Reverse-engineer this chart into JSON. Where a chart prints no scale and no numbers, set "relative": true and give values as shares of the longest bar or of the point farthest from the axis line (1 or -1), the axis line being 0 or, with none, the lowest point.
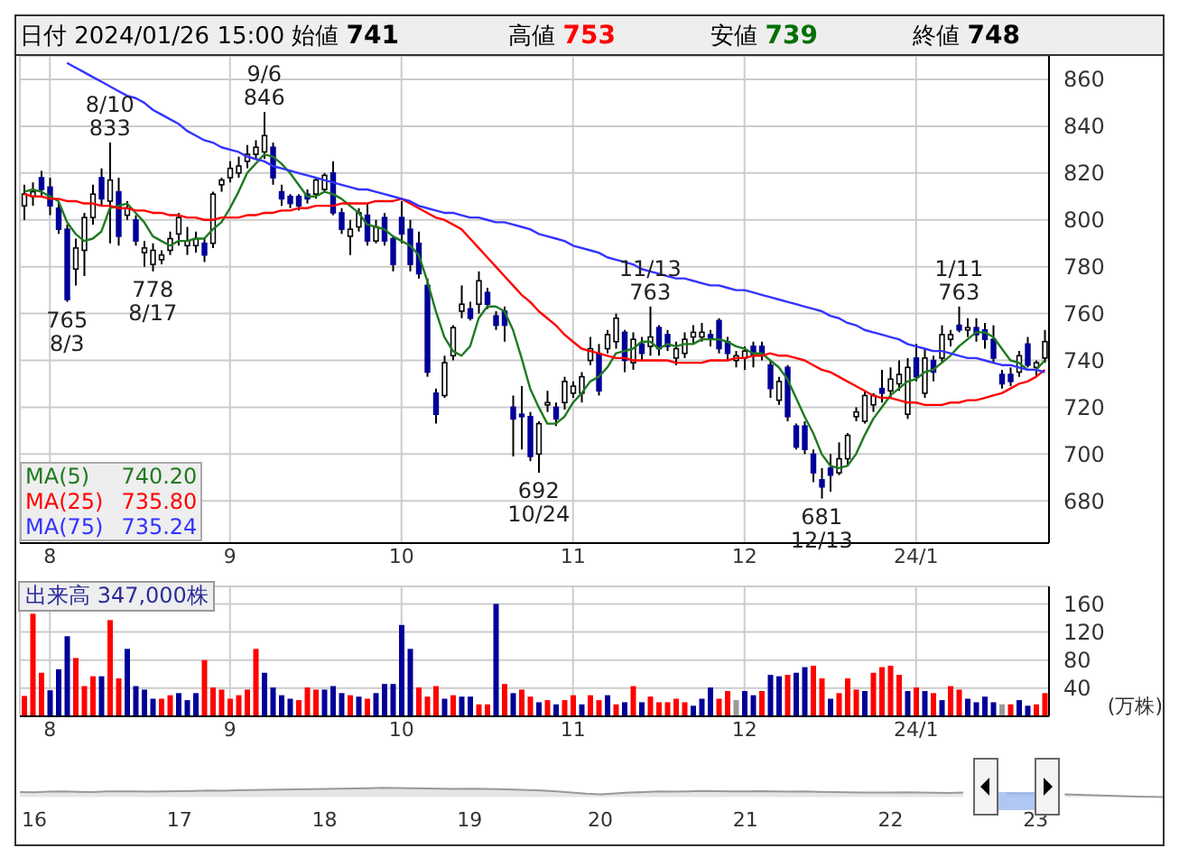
{
  "chart_data": [
    {
      "type": "candlestick",
      "title": "日付 2024/01/26 15:00",
      "annotations": [
        "始値 741",
        "高値 753",
        "安値 739",
        "終値 748",
        {
          "text": "765\n8/3",
          "y": 765
        },
        {
          "text": "8/10\n833",
          "y": 833
        },
        {
          "text": "778\n8/17",
          "y": 778
        },
        {
          "text": "9/6\n846",
          "y": 846
        },
        {
          "text": "692\n10/24",
          "y": 692
        },
        {
          "text": "11/13\n763",
          "y": 763
        },
        {
          "text": "681\n12/13",
          "y": 681
        },
        {
          "text": "1/11\n763",
          "y": 763
        }
      ],
      "categories": [
        null,
        null,
        null,
        "8",
        null,
        null,
        null,
        null,
        null,
        null,
        null,
        null,
        null,
        null,
        null,
        null,
        null,
        null,
        null,
        null,
        null,
        null,
        null,
        null,
        "9",
        null,
        null,
        null,
        null,
        null,
        null,
        null,
        null,
        null,
        null,
        null,
        null,
        null,
        null,
        null,
        null,
        null,
        null,
        null,
        "10",
        null,
        null,
        null,
        null,
        null,
        null,
        null,
        null,
        null,
        null,
        null,
        null,
        null,
        null,
        null,
        null,
        null,
        null,
        null,
        "11",
        null,
        null,
        null,
        null,
        null,
        null,
        null,
        null,
        null,
        null,
        null,
        null,
        null,
        null,
        null,
        null,
        null,
        null,
        null,
        "12",
        null,
        null,
        null,
        null,
        null,
        null,
        null,
        null,
        null,
        null,
        null,
        null,
        null,
        null,
        null,
        null,
        null,
        null,
        null,
        "24/1",
        null,
        null,
        null,
        null,
        null,
        null,
        null,
        null,
        null,
        null,
        null,
        null,
        null,
        null,
        null
      ],
      "ohlc": [
        [
          806,
          815,
          800,
          811
        ],
        [
          810,
          816,
          806,
          812
        ],
        [
          818,
          821,
          810,
          813
        ],
        [
          814,
          818,
          802,
          806
        ],
        [
          805,
          808,
          794,
          796
        ],
        [
          796,
          798,
          765,
          766
        ],
        [
          779,
          792,
          772,
          788
        ],
        [
          787,
          803,
          776,
          801
        ],
        [
          801,
          815,
          798,
          811
        ],
        [
          818,
          822,
          806,
          809
        ],
        [
          808,
          833,
          790,
          817
        ],
        [
          812,
          818,
          789,
          793
        ],
        [
          802,
          808,
          800,
          805
        ],
        [
          800,
          802,
          789,
          791
        ],
        [
          786,
          791,
          780,
          788
        ],
        [
          781,
          790,
          778,
          787
        ],
        [
          783,
          787,
          781,
          785
        ],
        [
          787,
          795,
          785,
          792
        ],
        [
          794,
          803,
          789,
          801
        ],
        [
          789,
          797,
          785,
          791
        ],
        [
          789,
          795,
          786,
          792
        ],
        [
          790,
          792,
          782,
          785
        ],
        [
          790,
          812,
          788,
          811
        ],
        [
          815,
          818,
          812,
          817
        ],
        [
          818,
          825,
          816,
          822
        ],
        [
          820,
          827,
          818,
          823
        ],
        [
          825,
          832,
          822,
          828
        ],
        [
          828,
          834,
          826,
          831
        ],
        [
          829,
          846,
          826,
          836
        ],
        [
          831,
          833,
          815,
          818
        ],
        [
          812,
          815,
          806,
          809
        ],
        [
          810,
          811,
          805,
          807
        ],
        [
          810,
          811,
          804,
          806
        ],
        [
          811,
          813,
          807,
          809
        ],
        [
          811,
          818,
          809,
          817
        ],
        [
          813,
          820,
          812,
          819
        ],
        [
          820,
          825,
          802,
          803
        ],
        [
          803,
          805,
          794,
          796
        ],
        [
          793,
          800,
          785,
          796
        ],
        [
          797,
          805,
          795,
          803
        ],
        [
          802,
          807,
          789,
          791
        ],
        [
          791,
          800,
          790,
          797
        ],
        [
          801,
          803,
          789,
          791
        ],
        [
          792,
          793,
          778,
          781
        ],
        [
          801,
          808,
          790,
          794
        ],
        [
          796,
          800,
          778,
          781
        ],
        [
          790,
          795,
          775,
          777
        ],
        [
          772,
          775,
          733,
          735
        ],
        [
          726,
          728,
          713,
          717
        ],
        [
          725,
          742,
          724,
          739
        ],
        [
          742,
          755,
          740,
          754
        ],
        [
          761,
          772,
          758,
          764
        ],
        [
          762,
          765,
          757,
          758
        ],
        [
          764,
          778,
          760,
          774
        ],
        [
          769,
          771,
          762,
          764
        ],
        [
          759,
          761,
          753,
          755
        ],
        [
          761,
          763,
          748,
          755
        ],
        [
          720,
          725,
          699,
          715
        ],
        [
          717,
          729,
          702,
          716
        ],
        [
          716,
          718,
          697,
          699
        ],
        [
          700,
          714,
          692,
          713
        ],
        [
          721,
          727,
          718,
          722
        ],
        [
          720,
          722,
          712,
          715
        ],
        [
          722,
          733,
          719,
          731
        ],
        [
          726,
          731,
          724,
          729
        ],
        [
          726,
          735,
          722,
          733
        ],
        [
          740,
          750,
          738,
          745
        ],
        [
          743,
          747,
          725,
          727
        ],
        [
          745,
          753,
          743,
          751
        ],
        [
          748,
          760,
          745,
          758
        ],
        [
          752,
          753,
          735,
          740
        ],
        [
          739,
          752,
          736,
          749
        ],
        [
          747,
          750,
          740,
          743
        ],
        [
          746,
          763,
          742,
          750
        ],
        [
          754,
          755,
          742,
          745
        ],
        [
          751,
          753,
          744,
          746
        ],
        [
          741,
          748,
          738,
          745
        ],
        [
          743,
          752,
          741,
          749
        ],
        [
          750,
          755,
          747,
          752
        ],
        [
          750,
          756,
          748,
          752
        ],
        [
          751,
          753,
          746,
          749
        ],
        [
          757,
          758,
          743,
          745
        ],
        [
          748,
          750,
          740,
          743
        ],
        [
          740,
          744,
          737,
          742
        ],
        [
          741,
          746,
          736,
          744
        ],
        [
          746,
          748,
          737,
          742
        ],
        [
          746,
          748,
          740,
          742
        ],
        [
          738,
          740,
          724,
          728
        ],
        [
          723,
          733,
          721,
          731
        ],
        [
          737,
          738,
          714,
          716
        ],
        [
          712,
          713,
          702,
          703
        ],
        [
          712,
          714,
          700,
          702
        ],
        [
          700,
          702,
          688,
          692
        ],
        [
          689,
          694,
          681,
          686
        ],
        [
          694,
          700,
          684,
          691
        ],
        [
          692,
          705,
          691,
          698
        ],
        [
          698,
          709,
          695,
          708
        ],
        [
          716,
          720,
          714,
          718
        ],
        [
          714,
          727,
          713,
          725
        ],
        [
          721,
          726,
          718,
          725
        ],
        [
          728,
          736,
          722,
          726
        ],
        [
          727,
          737,
          724,
          732
        ],
        [
          730,
          740,
          727,
          734
        ],
        [
          717,
          741,
          715,
          737
        ],
        [
          741,
          747,
          731,
          733
        ],
        [
          726,
          745,
          724,
          741
        ],
        [
          740,
          742,
          731,
          735
        ],
        [
          741,
          755,
          739,
          751
        ],
        [
          749,
          753,
          746,
          751
        ],
        [
          755,
          763,
          752,
          753
        ],
        [
          753,
          758,
          750,
          754
        ],
        [
          754,
          758,
          748,
          751
        ],
        [
          753,
          756,
          745,
          749
        ],
        [
          749,
          755,
          739,
          741
        ],
        [
          734,
          736,
          728,
          730
        ],
        [
          734,
          737,
          729,
          731
        ],
        [
          735,
          744,
          733,
          742
        ],
        [
          747,
          750,
          737,
          738
        ],
        [
          737,
          740,
          733,
          739
        ],
        [
          741,
          753,
          739,
          748
        ]
      ],
      "series": [
        {
          "name": "MA(5) 740.20",
          "type": "line",
          "color": "#1f7a1f",
          "values": [
            812,
            813,
            812,
            810,
            808,
            799,
            794,
            791,
            792,
            795,
            805,
            806,
            807,
            803,
            799,
            793,
            791,
            789,
            791,
            791,
            792,
            792,
            796,
            799,
            805,
            812,
            820,
            824,
            828,
            827,
            824,
            820,
            815,
            810,
            810,
            812,
            811,
            809,
            806,
            803,
            798,
            797,
            796,
            793,
            791,
            789,
            785,
            774,
            761,
            750,
            744,
            742,
            746,
            758,
            763,
            763,
            761,
            753,
            741,
            728,
            720,
            713,
            713,
            716,
            722,
            726,
            731,
            733,
            737,
            743,
            744,
            745,
            748,
            748,
            745,
            747,
            746,
            747,
            747,
            749,
            749,
            749,
            748,
            746,
            745,
            743,
            743,
            740,
            737,
            732,
            724,
            716,
            709,
            700,
            695,
            694,
            695,
            700,
            708,
            715,
            720,
            725,
            728,
            731,
            732,
            735,
            736,
            739,
            742,
            746,
            749,
            752,
            752,
            750,
            745,
            740,
            739,
            736,
            736,
            740
          ]
        },
        {
          "name": "MA(25) 735.80",
          "type": "line",
          "color": "#ff0000",
          "values": [
            811,
            810,
            810,
            809,
            809,
            808,
            808,
            807,
            807,
            806,
            806,
            805,
            805,
            804,
            804,
            803,
            803,
            802,
            802,
            801,
            801,
            800,
            800,
            801,
            801,
            801,
            802,
            802,
            803,
            803,
            804,
            804,
            805,
            805,
            806,
            806,
            806,
            807,
            807,
            807,
            807,
            808,
            808,
            808,
            809,
            807,
            805,
            803,
            801,
            800,
            798,
            796,
            792,
            788,
            784,
            780,
            776,
            772,
            768,
            765,
            761,
            758,
            755,
            751,
            748,
            745,
            744,
            743,
            742,
            741,
            741,
            740,
            740,
            740,
            740,
            740,
            739,
            739,
            739,
            739,
            740,
            740,
            740,
            741,
            741,
            742,
            742,
            743,
            742,
            742,
            741,
            740,
            738,
            736,
            735,
            733,
            731,
            729,
            727,
            725,
            724,
            724,
            723,
            722,
            722,
            721,
            721,
            721,
            722,
            722,
            723,
            723,
            724,
            725,
            726,
            728,
            730,
            731,
            733,
            736
          ]
        },
        {
          "name": "MA(75) 735.24",
          "type": "line",
          "color": "#3333ff",
          "values": [
            null,
            null,
            null,
            null,
            null,
            867,
            865,
            863,
            861,
            859,
            857,
            855,
            853,
            852,
            850,
            847,
            845,
            843,
            841,
            838,
            836,
            834,
            833,
            831,
            830,
            829,
            827,
            826,
            825,
            823,
            822,
            821,
            820,
            819,
            818,
            817,
            816,
            815,
            814,
            813,
            813,
            812,
            811,
            810,
            809,
            808,
            806,
            805,
            804,
            803,
            803,
            802,
            801,
            801,
            800,
            799,
            799,
            798,
            797,
            796,
            794,
            793,
            792,
            791,
            789,
            788,
            787,
            786,
            784,
            783,
            782,
            781,
            779,
            778,
            777,
            776,
            775,
            775,
            774,
            773,
            772,
            772,
            771,
            770,
            770,
            769,
            768,
            767,
            766,
            765,
            764,
            763,
            762,
            761,
            759,
            758,
            756,
            755,
            753,
            752,
            751,
            750,
            749,
            747,
            746,
            745,
            744,
            744,
            743,
            742,
            741,
            741,
            740,
            739,
            738,
            738,
            737,
            736,
            736,
            735
          ]
        }
      ],
      "ylim": [
        662,
        870
      ],
      "yticks": [
        680,
        700,
        720,
        740,
        760,
        780,
        800,
        820,
        840,
        860
      ],
      "grid": true,
      "legend": "bottom left"
    },
    {
      "type": "bar",
      "title": "出来高 347,000株",
      "ylabel": "(万株)",
      "categories": [
        null,
        null,
        null,
        "8",
        null,
        null,
        null,
        null,
        null,
        null,
        null,
        null,
        null,
        null,
        null,
        null,
        null,
        null,
        null,
        null,
        null,
        null,
        null,
        null,
        "9",
        null,
        null,
        null,
        null,
        null,
        null,
        null,
        null,
        null,
        null,
        null,
        null,
        null,
        null,
        null,
        null,
        null,
        null,
        null,
        "10",
        null,
        null,
        null,
        null,
        null,
        null,
        null,
        null,
        null,
        null,
        null,
        null,
        null,
        null,
        null,
        null,
        null,
        null,
        null,
        "11",
        null,
        null,
        null,
        null,
        null,
        null,
        null,
        null,
        null,
        null,
        null,
        null,
        null,
        null,
        null,
        null,
        null,
        null,
        null,
        "12",
        null,
        null,
        null,
        null,
        null,
        null,
        null,
        null,
        null,
        null,
        null,
        null,
        null,
        null,
        null,
        null,
        null,
        null,
        null,
        "24/1",
        null,
        null,
        null,
        null,
        null,
        null,
        null,
        null,
        null,
        null,
        null,
        null,
        null,
        null,
        null
      ],
      "values": [
        29,
        146,
        62,
        37,
        67,
        114,
        83,
        43,
        57,
        57,
        137,
        54,
        96,
        43,
        38,
        25,
        25,
        30,
        33,
        23,
        33,
        80,
        41,
        38,
        25,
        30,
        38,
        96,
        62,
        41,
        30,
        25,
        23,
        41,
        38,
        38,
        43,
        33,
        30,
        28,
        25,
        33,
        46,
        46,
        130,
        96,
        41,
        28,
        43,
        25,
        30,
        28,
        28,
        17,
        17,
        160,
        46,
        33,
        38,
        28,
        20,
        23,
        17,
        23,
        30,
        17,
        30,
        23,
        30,
        17,
        20,
        43,
        20,
        28,
        20,
        20,
        25,
        20,
        15,
        25,
        41,
        25,
        36,
        23,
        36,
        30,
        36,
        59,
        57,
        59,
        62,
        70,
        72,
        54,
        25,
        33,
        54,
        38,
        36,
        62,
        70,
        72,
        59,
        36,
        41,
        36,
        33,
        23,
        43,
        38,
        25,
        20,
        28,
        20,
        17,
        17,
        23,
        15,
        17,
        33
      ],
      "colors": [
        "#ff0000",
        "#ff0000",
        "#ff0000",
        "#000099",
        "#000099",
        "#000099",
        "#ff0000",
        "#ff0000",
        "#ff0000",
        "#000099",
        "#ff0000",
        "#ff0000",
        "#000099",
        "#000099",
        "#000099",
        "#000099",
        "#ff0000",
        "#ff0000",
        "#000099",
        "#000099",
        "#000099",
        "#ff0000",
        "#ff0000",
        "#ff0000",
        "#ff0000",
        "#ff0000",
        "#ff0000",
        "#ff0000",
        "#000099",
        "#000099",
        "#000099",
        "#000099",
        "#ff0000",
        "#ff0000",
        "#ff0000",
        "#000099",
        "#000099",
        "#000099",
        "#ff0000",
        "#000099",
        "#ff0000",
        "#000099",
        "#000099",
        "#000099",
        "#000099",
        "#000099",
        "#ff0000",
        "#ff0000",
        "#ff0000",
        "#000099",
        "#ff0000",
        "#000099",
        "#000099",
        "#ff0000",
        "#ff0000",
        "#000099",
        "#ff0000",
        "#000099",
        "#ff0000",
        "#ff0000",
        "#000099",
        "#ff0000",
        "#000099",
        "#ff0000",
        "#ff0000",
        "#000099",
        "#ff0000",
        "#ff0000",
        "#000099",
        "#ff0000",
        "#000099",
        "#ff0000",
        "#000099",
        "#ff0000",
        "#ff0000",
        "#ff0000",
        "#ff0000",
        "#ff0000",
        "#000099",
        "#000099",
        "#000099",
        "#ff0000",
        "#ff0000",
        "#999999",
        "#000099",
        "#000099",
        "#ff0000",
        "#000099",
        "#000099",
        "#ff0000",
        "#000099",
        "#000099",
        "#ff0000",
        "#ff0000",
        "#000099",
        "#ff0000",
        "#ff0000",
        "#ff0000",
        "#000099",
        "#ff0000",
        "#ff0000",
        "#ff0000",
        "#ff0000",
        "#000099",
        "#ff0000",
        "#000099",
        "#ff0000",
        "#000099",
        "#ff0000",
        "#ff0000",
        "#000099",
        "#000099",
        "#000099",
        "#000099",
        "#999999",
        "#ff0000",
        "#000099",
        "#000099",
        "#ff0000",
        "#ff0000"
      ],
      "ylim": [
        0,
        185
      ],
      "yticks": [
        40,
        80,
        120,
        160
      ],
      "grid": true
    },
    {
      "type": "area",
      "relative": true,
      "tick_labels": "x",
      "color": "#999999",
      "categories": [
        null,
        "16",
        null,
        null,
        null,
        null,
        null,
        null,
        null,
        null,
        null,
        "17",
        null,
        null,
        null,
        null,
        null,
        null,
        null,
        null,
        null,
        "18",
        null,
        null,
        null,
        null,
        null,
        null,
        null,
        null,
        null,
        "19",
        null,
        null,
        null,
        null,
        null,
        null,
        null,
        null,
        "20",
        null,
        null,
        null,
        null,
        null,
        null,
        null,
        null,
        null,
        "21",
        null,
        null,
        null,
        null,
        null,
        null,
        null,
        null,
        null,
        "22",
        null,
        null,
        null,
        null,
        null,
        null,
        null,
        null,
        null,
        "23",
        null,
        null,
        null,
        null,
        null,
        null,
        null,
        null,
        null
      ],
      "values": [
        0.55,
        0.52,
        0.58,
        0.6,
        0.57,
        0.55,
        0.6,
        0.62,
        0.6,
        0.58,
        0.6,
        0.63,
        0.66,
        0.7,
        0.68,
        0.72,
        0.75,
        0.78,
        0.8,
        0.82,
        0.85,
        0.88,
        0.9,
        0.93,
        0.95,
        1,
        0.97,
        0.94,
        0.92,
        0.9,
        0.88,
        0.9,
        0.87,
        0.84,
        0.8,
        0.75,
        0.7,
        0.62,
        0.5,
        0.38,
        0.3,
        0.4,
        0.5,
        0.55,
        0.6,
        0.58,
        0.62,
        0.65,
        0.63,
        0.6,
        0.62,
        0.64,
        0.6,
        0.58,
        0.6,
        0.57,
        0.55,
        0.52,
        0.5,
        0.48,
        0.5,
        0.52,
        0.5,
        0.47,
        0.45,
        0.48,
        null,
        null,
        0.43,
        0.4,
        0.38,
        null,
        0.3,
        0.25,
        0.2,
        0.15,
        0.1,
        0.05,
        0.03,
        0
      ]
    }
  ]
}
